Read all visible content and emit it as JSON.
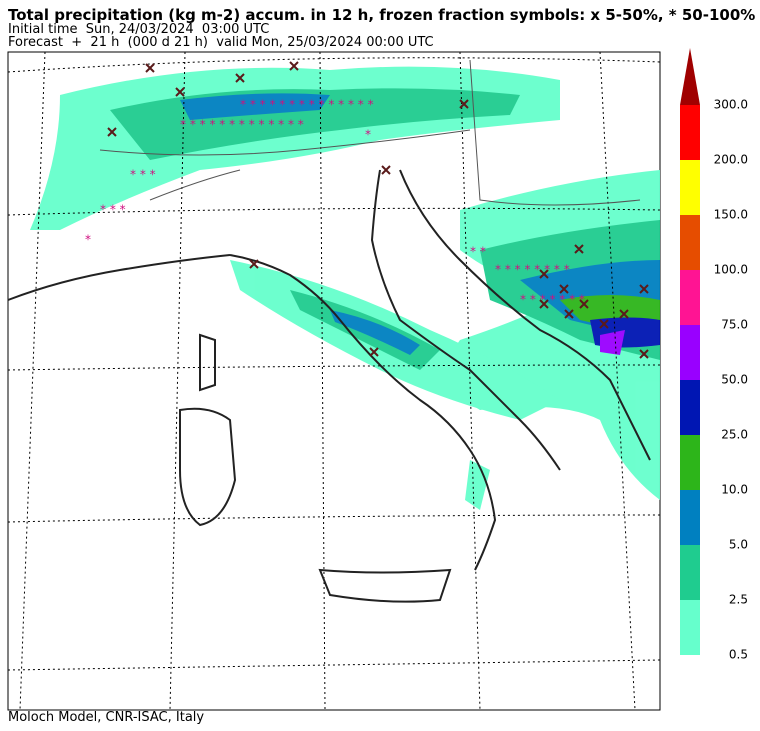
{
  "header": {
    "title": "Total precipitation (kg m-2) accum. in 12 h, frozen fraction symbols: x 5-50%, * 50-100%",
    "initial_time": "Initial time  Sun, 24/03/2024  03:00 UTC",
    "forecast": "Forecast  +  21 h  (000 d 21 h)  valid Mon, 25/03/2024 00:00 UTC"
  },
  "colorbar": {
    "labels": [
      "0.5",
      "2.5",
      "5.0",
      "10.0",
      "25.0",
      "50.0",
      "75.0",
      "100.0",
      "150.0",
      "200.0",
      "300.0"
    ],
    "colors": [
      "#66ffcc",
      "#1fcc8f",
      "#0080c0",
      "#2db51a",
      "#0016b3",
      "#9900ff",
      "#ff1493",
      "#e64d00",
      "#ffff00",
      "#ff0000",
      "#a00000"
    ]
  },
  "footer": "Moloch Model, CNR-ISAC, Italy"
}
